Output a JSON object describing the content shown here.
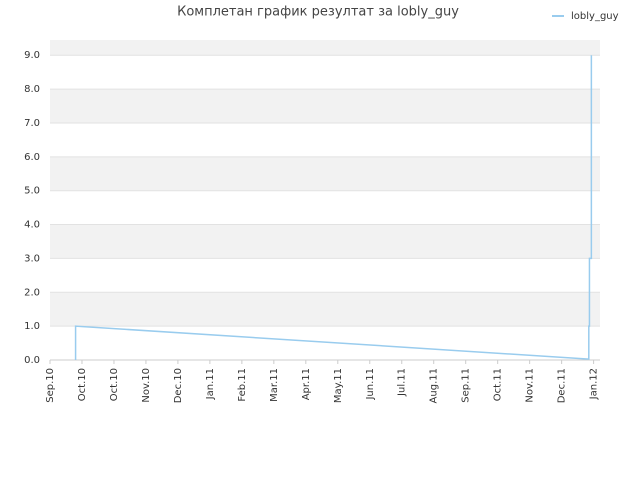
{
  "chart_data": {
    "type": "line",
    "title": "Комплетан график резултат за lobly_guy",
    "xlim": [
      0,
      17.2
    ],
    "xticks": [
      {
        "value": 0,
        "label": "Sep.10"
      },
      {
        "value": 1,
        "label": "Oct.10"
      },
      {
        "value": 2,
        "label": "Oct.10"
      },
      {
        "value": 3,
        "label": "Nov.10"
      },
      {
        "value": 4,
        "label": "Dec.10"
      },
      {
        "value": 5,
        "label": "Jan.11"
      },
      {
        "value": 6,
        "label": "Feb.11"
      },
      {
        "value": 7,
        "label": "Mar.11"
      },
      {
        "value": 8,
        "label": "Apr.11"
      },
      {
        "value": 9,
        "label": "May.11"
      },
      {
        "value": 10,
        "label": "Jun.11"
      },
      {
        "value": 11,
        "label": "Jul.11"
      },
      {
        "value": 12,
        "label": "Aug.11"
      },
      {
        "value": 13,
        "label": "Sep.11"
      },
      {
        "value": 14,
        "label": "Oct.11"
      },
      {
        "value": 15,
        "label": "Nov.11"
      },
      {
        "value": 16,
        "label": "Dec.11"
      },
      {
        "value": 17,
        "label": "Jan.12"
      }
    ],
    "ylim": [
      0,
      9.45
    ],
    "yticks": [
      {
        "value": 0,
        "label": "0.0"
      },
      {
        "value": 1,
        "label": "1.0"
      },
      {
        "value": 2,
        "label": "2.0"
      },
      {
        "value": 3,
        "label": "3.0"
      },
      {
        "value": 4,
        "label": "4.0"
      },
      {
        "value": 5,
        "label": "5.0"
      },
      {
        "value": 6,
        "label": "6.0"
      },
      {
        "value": 7,
        "label": "7.0"
      },
      {
        "value": 8,
        "label": "8.0"
      },
      {
        "value": 9,
        "label": "9.0"
      }
    ],
    "grid": true,
    "legend": "top-right",
    "series": [
      {
        "name": "lobly_guy",
        "color": "#99ccee",
        "x": [
          0.8,
          0.8,
          16.8,
          16.85,
          16.85,
          16.87,
          16.87,
          16.93,
          16.93
        ],
        "values": [
          0,
          1.0,
          0.03,
          0.03,
          1.0,
          1.0,
          3.0,
          3.0,
          9.0
        ]
      }
    ]
  }
}
